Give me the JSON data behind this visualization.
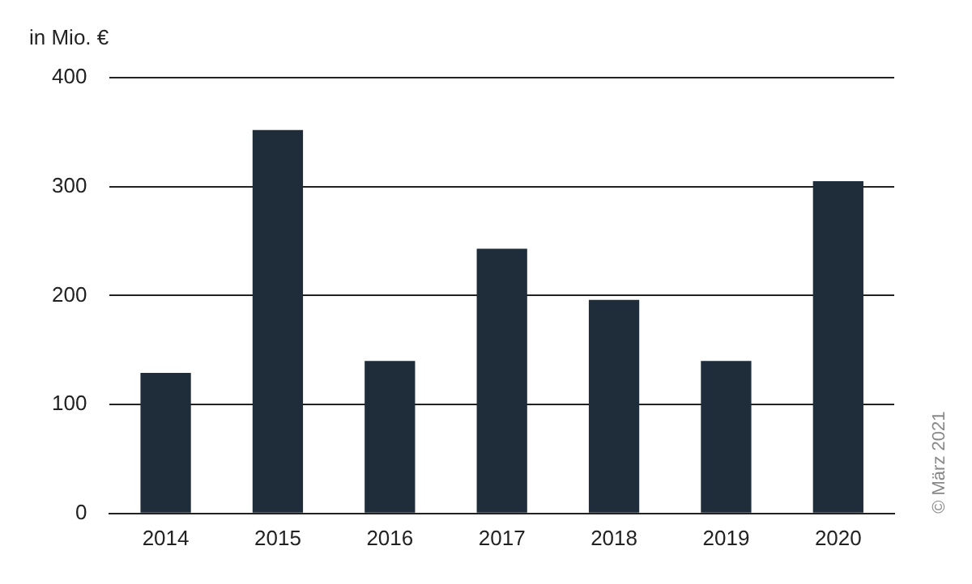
{
  "chart_data": {
    "type": "bar",
    "ylabel": "in Mio. €",
    "categories": [
      "2014",
      "2015",
      "2016",
      "2017",
      "2018",
      "2019",
      "2020"
    ],
    "values": [
      129,
      352,
      140,
      243,
      196,
      140,
      305
    ],
    "color": "#1f2d3a",
    "ylim": [
      0,
      400
    ],
    "yticks": [
      0,
      100,
      200,
      300,
      400
    ],
    "grid": "y",
    "legend": false,
    "annotations": [
      "© März 2021"
    ]
  }
}
